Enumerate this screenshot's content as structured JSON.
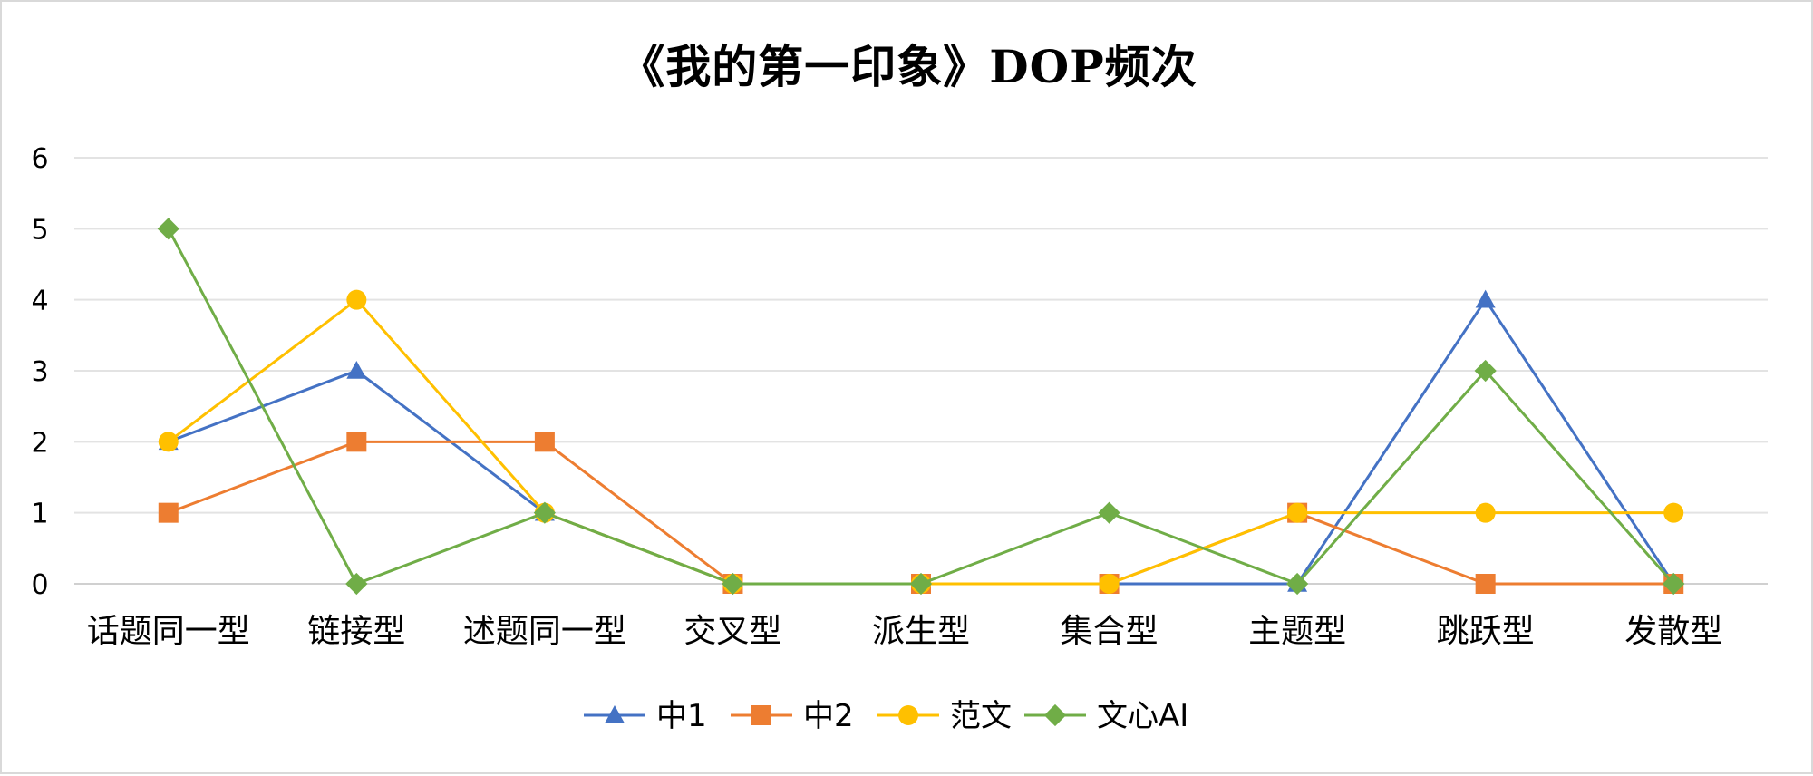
{
  "chart_data": {
    "type": "line",
    "title": "《我的第一印象》DOP频次",
    "categories": [
      "话题同一型",
      "链接型",
      "述题同一型",
      "交叉型",
      "派生型",
      "集合型",
      "主题型",
      "跳跃型",
      "发散型"
    ],
    "ylim": [
      0,
      6
    ],
    "yticks": [
      0,
      1,
      2,
      3,
      4,
      5,
      6
    ],
    "grid": true,
    "legend_position": "bottom",
    "series": [
      {
        "name": "中1",
        "values": [
          2,
          3,
          1,
          0,
          0,
          0,
          0,
          4,
          0
        ],
        "color": "#4472C4",
        "marker": "triangle"
      },
      {
        "name": "中2",
        "values": [
          1,
          2,
          2,
          0,
          0,
          0,
          1,
          0,
          0
        ],
        "color": "#ED7D31",
        "marker": "square"
      },
      {
        "name": "范文",
        "values": [
          2,
          4,
          1,
          0,
          0,
          0,
          1,
          1,
          1
        ],
        "color": "#FFC000",
        "marker": "circle"
      },
      {
        "name": "文心AI",
        "values": [
          5,
          0,
          1,
          0,
          0,
          1,
          0,
          3,
          0
        ],
        "color": "#70AD47",
        "marker": "diamond"
      }
    ]
  }
}
